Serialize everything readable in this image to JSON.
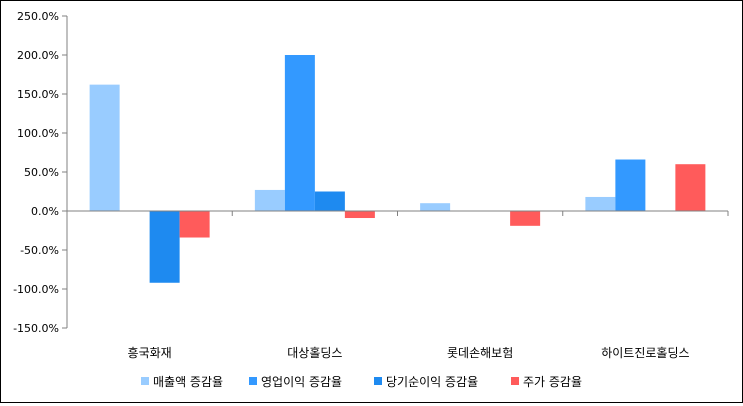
{
  "chart_data": {
    "type": "bar",
    "categories": [
      "흥국화재",
      "대상홀딩스",
      "롯데손해보험",
      "하이트진로홀딩스"
    ],
    "series": [
      {
        "name": "매출액 증감율",
        "color": "#99CCFF",
        "values": [
          162,
          27,
          10,
          18
        ]
      },
      {
        "name": "영업이익 증감율",
        "color": "#3399FF",
        "values": [
          null,
          200,
          null,
          66
        ]
      },
      {
        "name": "당기순이익 증감율",
        "color": "#1E8AF0",
        "values": [
          -92,
          25,
          null,
          null
        ]
      },
      {
        "name": "주가 증감율",
        "color": "#FF5B5B",
        "values": [
          -34,
          -9,
          -19,
          60
        ]
      }
    ],
    "y_ticks": [
      "250.0%",
      "200.0%",
      "150.0%",
      "100.0%",
      "50.0%",
      "0.0%",
      "-50.0%",
      "-100.0%",
      "-150.0%"
    ],
    "ylim": [
      -150,
      250
    ],
    "y_unit": "%",
    "legend_position": "bottom",
    "grid": false
  }
}
